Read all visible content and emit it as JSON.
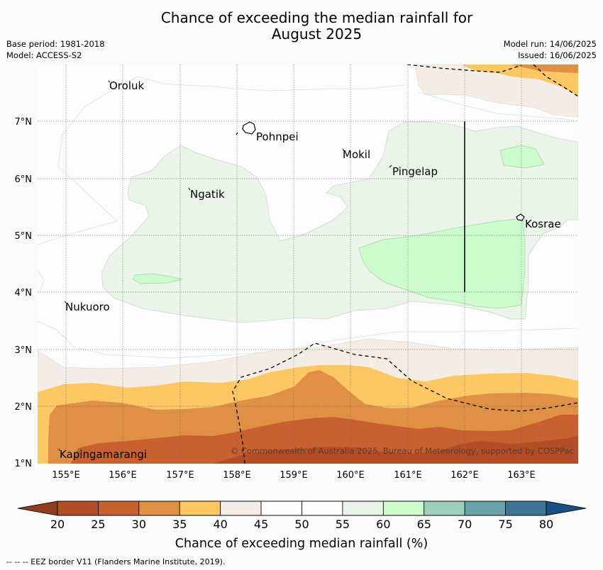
{
  "title": {
    "line1": "Chance of exceeding the median rainfall for",
    "line2": "August 2025"
  },
  "meta": {
    "base_period": "Base period: 1981-2018",
    "model": "Model: ACCESS-S2",
    "model_run": "Model run: 14/06/2025",
    "issued": "Issued: 16/06/2025"
  },
  "map": {
    "lat_ticks": [
      "1°N",
      "2°N",
      "3°N",
      "4°N",
      "5°N",
      "6°N",
      "7°N"
    ],
    "lon_ticks": [
      "155°E",
      "156°E",
      "157°E",
      "158°E",
      "159°E",
      "160°E",
      "161°E",
      "162°E",
      "163°E"
    ],
    "places": {
      "oroluk": "Oroluk",
      "pohnpei": "Pohnpei",
      "mokil": "Mokil",
      "pingelap": "Pingelap",
      "ngatik": "Ngatik",
      "kosrae": "Kosrae",
      "nukuoro": "Nukuoro",
      "kapingamarangi": "Kapingamarangi"
    },
    "copyright": "© Commonwealth of Australia 2025, Bureau of Meteorology, supported by COSPPac"
  },
  "colorbar": {
    "ticks": [
      "20",
      "25",
      "30",
      "35",
      "40",
      "45",
      "50",
      "55",
      "60",
      "65",
      "70",
      "75",
      "80"
    ],
    "colors": [
      "#b34d27",
      "#c8602f",
      "#df9044",
      "#fdc764",
      "#f4ede5",
      "#fcfdfc",
      "#fcfdfc",
      "#e9f4e8",
      "#ccfccc",
      "#9dd0b8",
      "#6aa1a8",
      "#3e7596"
    ],
    "under_color": "#8e3e20",
    "over_color": "#185084",
    "label": "Chance of exceeding median rainfall (%)"
  },
  "footer": "--  --  -- EEZ border V11 (Flanders Marine Institute, 2019)."
}
